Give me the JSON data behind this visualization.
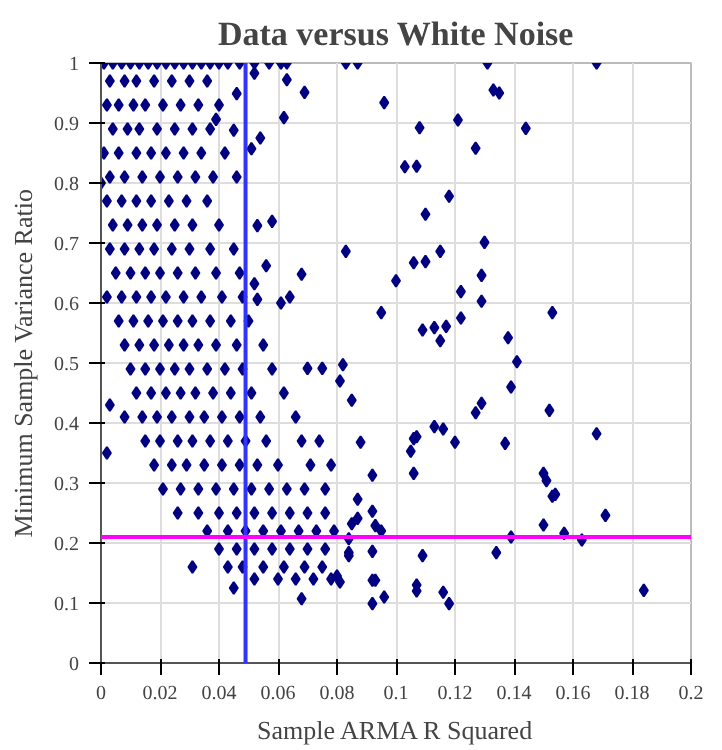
{
  "chart_data": {
    "type": "scatter",
    "title": "Data versus White Noise",
    "xlabel": "Sample ARMA R Squared",
    "ylabel": "Minimum Sample Variance Ratio",
    "xlim": [
      0,
      0.2
    ],
    "xticks": [
      0,
      0.02,
      0.04,
      0.06,
      0.08,
      0.1,
      0.12,
      0.14,
      0.16,
      0.18,
      0.2
    ],
    "ylim": [
      0,
      1
    ],
    "yticks": [
      0,
      0.1,
      0.2,
      0.3,
      0.4,
      0.5,
      0.6,
      0.7,
      0.8,
      0.9,
      1
    ],
    "grid": true,
    "marker": "diamond",
    "ref_lines": [
      {
        "axis": "x",
        "value": 0.049,
        "color": "#3333ff"
      },
      {
        "axis": "y",
        "value": 0.21,
        "color": "#ff00ff"
      }
    ],
    "series": [
      {
        "color": "#000080",
        "x": [
          0.001,
          0.004,
          0.007,
          0.01,
          0.013,
          0.016,
          0.019,
          0.022,
          0.025,
          0.028,
          0.031,
          0.034,
          0.037,
          0.04,
          0.043,
          0.047,
          0.052,
          0.057,
          0.061,
          0.063,
          0.003,
          0.008,
          0.012,
          0.018,
          0.024,
          0.03,
          0.036,
          0.002,
          0.006,
          0.011,
          0.015,
          0.021,
          0.027,
          0.033,
          0.04,
          0.004,
          0.009,
          0.013,
          0.019,
          0.025,
          0.031,
          0.037,
          0.001,
          0.006,
          0.012,
          0.017,
          0.022,
          0.028,
          0.034,
          0.042,
          0.003,
          0.008,
          0.014,
          0.02,
          0.026,
          0.032,
          0.038,
          0.046,
          0.0,
          0.002,
          0.007,
          0.012,
          0.017,
          0.023,
          0.029,
          0.036,
          0.004,
          0.009,
          0.014,
          0.019,
          0.025,
          0.031,
          0.04,
          0.003,
          0.008,
          0.013,
          0.018,
          0.024,
          0.03,
          0.037,
          0.045,
          0.005,
          0.01,
          0.015,
          0.02,
          0.026,
          0.032,
          0.039,
          0.047,
          0.002,
          0.007,
          0.012,
          0.017,
          0.022,
          0.028,
          0.034,
          0.041,
          0.048,
          0.006,
          0.011,
          0.016,
          0.021,
          0.026,
          0.031,
          0.037,
          0.044,
          0.05,
          0.008,
          0.013,
          0.018,
          0.023,
          0.028,
          0.033,
          0.039,
          0.046,
          0.055,
          0.01,
          0.015,
          0.02,
          0.025,
          0.03,
          0.036,
          0.042,
          0.048,
          0.058,
          0.012,
          0.017,
          0.022,
          0.027,
          0.032,
          0.038,
          0.044,
          0.051,
          0.062,
          0.003,
          0.008,
          0.014,
          0.019,
          0.024,
          0.03,
          0.035,
          0.041,
          0.047,
          0.054,
          0.066,
          0.015,
          0.02,
          0.026,
          0.031,
          0.037,
          0.043,
          0.049,
          0.056,
          0.068,
          0.074,
          0.002,
          0.018,
          0.024,
          0.029,
          0.035,
          0.041,
          0.047,
          0.053,
          0.06,
          0.071,
          0.078,
          0.021,
          0.027,
          0.033,
          0.039,
          0.045,
          0.051,
          0.057,
          0.063,
          0.069,
          0.076,
          0.026,
          0.033,
          0.04,
          0.046,
          0.052,
          0.058,
          0.064,
          0.07,
          0.076,
          0.036,
          0.043,
          0.049,
          0.055,
          0.061,
          0.067,
          0.073,
          0.079,
          0.04,
          0.046,
          0.052,
          0.058,
          0.064,
          0.07,
          0.076,
          0.031,
          0.043,
          0.048,
          0.055,
          0.062,
          0.069,
          0.075,
          0.052,
          0.06,
          0.066,
          0.072,
          0.078,
          0.045,
          0.068,
          0.046,
          0.052,
          0.063,
          0.069,
          0.062,
          0.054,
          0.051,
          0.045,
          0.039,
          0.052,
          0.053,
          0.061,
          0.064,
          0.056,
          0.068,
          0.053,
          0.058,
          0.075,
          0.07,
          0.083,
          0.087,
          0.131,
          0.168,
          0.096,
          0.133,
          0.135,
          0.121,
          0.108,
          0.144,
          0.127,
          0.103,
          0.107,
          0.118,
          0.11,
          0.083,
          0.13,
          0.115,
          0.106,
          0.11,
          0.1,
          0.129,
          0.122,
          0.129,
          0.095,
          0.153,
          0.122,
          0.109,
          0.113,
          0.117,
          0.115,
          0.138,
          0.141,
          0.082,
          0.081,
          0.139,
          0.085,
          0.152,
          0.127,
          0.129,
          0.113,
          0.116,
          0.106,
          0.107,
          0.168,
          0.088,
          0.12,
          0.137,
          0.105,
          0.106,
          0.092,
          0.15,
          0.151,
          0.153,
          0.154,
          0.087,
          0.092,
          0.171,
          0.085,
          0.087,
          0.15,
          0.093,
          0.095,
          0.157,
          0.084,
          0.139,
          0.163,
          0.092,
          0.084,
          0.084,
          0.134,
          0.109,
          0.08,
          0.081,
          0.092,
          0.093,
          0.107,
          0.107,
          0.116,
          0.096,
          0.092,
          0.118,
          0.184
        ],
        "values": [
          1,
          1,
          1,
          1,
          1,
          1,
          1,
          1,
          1,
          1,
          1,
          1,
          1,
          1,
          1,
          1,
          1,
          1,
          1,
          1,
          0.97,
          0.97,
          0.97,
          0.97,
          0.97,
          0.97,
          0.97,
          0.93,
          0.93,
          0.93,
          0.93,
          0.93,
          0.93,
          0.93,
          0.93,
          0.89,
          0.89,
          0.89,
          0.89,
          0.89,
          0.89,
          0.89,
          0.85,
          0.85,
          0.85,
          0.85,
          0.85,
          0.85,
          0.85,
          0.85,
          0.81,
          0.81,
          0.81,
          0.81,
          0.81,
          0.81,
          0.81,
          0.81,
          0.8,
          0.77,
          0.77,
          0.77,
          0.77,
          0.77,
          0.77,
          0.77,
          0.73,
          0.73,
          0.73,
          0.73,
          0.73,
          0.73,
          0.73,
          0.69,
          0.69,
          0.69,
          0.69,
          0.69,
          0.69,
          0.69,
          0.69,
          0.65,
          0.65,
          0.65,
          0.65,
          0.65,
          0.65,
          0.65,
          0.65,
          0.61,
          0.61,
          0.61,
          0.61,
          0.61,
          0.61,
          0.61,
          0.61,
          0.61,
          0.57,
          0.57,
          0.57,
          0.57,
          0.57,
          0.57,
          0.57,
          0.57,
          0.57,
          0.53,
          0.53,
          0.53,
          0.53,
          0.53,
          0.53,
          0.53,
          0.53,
          0.53,
          0.49,
          0.49,
          0.49,
          0.49,
          0.49,
          0.49,
          0.49,
          0.49,
          0.49,
          0.45,
          0.45,
          0.45,
          0.45,
          0.45,
          0.45,
          0.45,
          0.45,
          0.45,
          0.43,
          0.41,
          0.41,
          0.41,
          0.41,
          0.41,
          0.41,
          0.41,
          0.41,
          0.41,
          0.41,
          0.37,
          0.37,
          0.37,
          0.37,
          0.37,
          0.37,
          0.37,
          0.37,
          0.37,
          0.37,
          0.35,
          0.33,
          0.33,
          0.33,
          0.33,
          0.33,
          0.33,
          0.33,
          0.33,
          0.33,
          0.33,
          0.29,
          0.29,
          0.29,
          0.29,
          0.29,
          0.29,
          0.29,
          0.29,
          0.29,
          0.29,
          0.25,
          0.25,
          0.25,
          0.25,
          0.25,
          0.25,
          0.25,
          0.25,
          0.25,
          0.22,
          0.22,
          0.22,
          0.22,
          0.22,
          0.22,
          0.22,
          0.22,
          0.19,
          0.19,
          0.19,
          0.19,
          0.19,
          0.19,
          0.19,
          0.16,
          0.16,
          0.16,
          0.16,
          0.16,
          0.16,
          0.16,
          0.14,
          0.14,
          0.14,
          0.14,
          0.14,
          0.125,
          0.107,
          0.949,
          0.983,
          0.972,
          0.951,
          0.909,
          0.875,
          0.857,
          0.888,
          0.906,
          0.632,
          0.606,
          0.6,
          0.61,
          0.662,
          0.648,
          0.729,
          0.736,
          0.491,
          0.491,
          1,
          1,
          1,
          1,
          0.934,
          0.955,
          0.95,
          0.905,
          0.892,
          0.891,
          0.858,
          0.827,
          0.828,
          0.778,
          0.748,
          0.686,
          0.701,
          0.686,
          0.667,
          0.669,
          0.637,
          0.646,
          0.619,
          0.603,
          0.584,
          0.584,
          0.575,
          0.555,
          0.559,
          0.561,
          0.537,
          0.542,
          0.502,
          0.497,
          0.47,
          0.46,
          0.438,
          0.421,
          0.417,
          0.433,
          0.394,
          0.39,
          0.374,
          0.377,
          0.382,
          0.368,
          0.368,
          0.366,
          0.353,
          0.316,
          0.313,
          0.316,
          0.304,
          0.278,
          0.281,
          0.273,
          0.253,
          0.246,
          0.232,
          0.241,
          0.23,
          0.229,
          0.22,
          0.216,
          0.207,
          0.21,
          0.205,
          0.186,
          0.184,
          0.179,
          0.184,
          0.179,
          0.145,
          0.135,
          0.138,
          0.138,
          0.13,
          0.12,
          0.118,
          0.11,
          0.099,
          0.099,
          0.121
        ]
      }
    ]
  }
}
